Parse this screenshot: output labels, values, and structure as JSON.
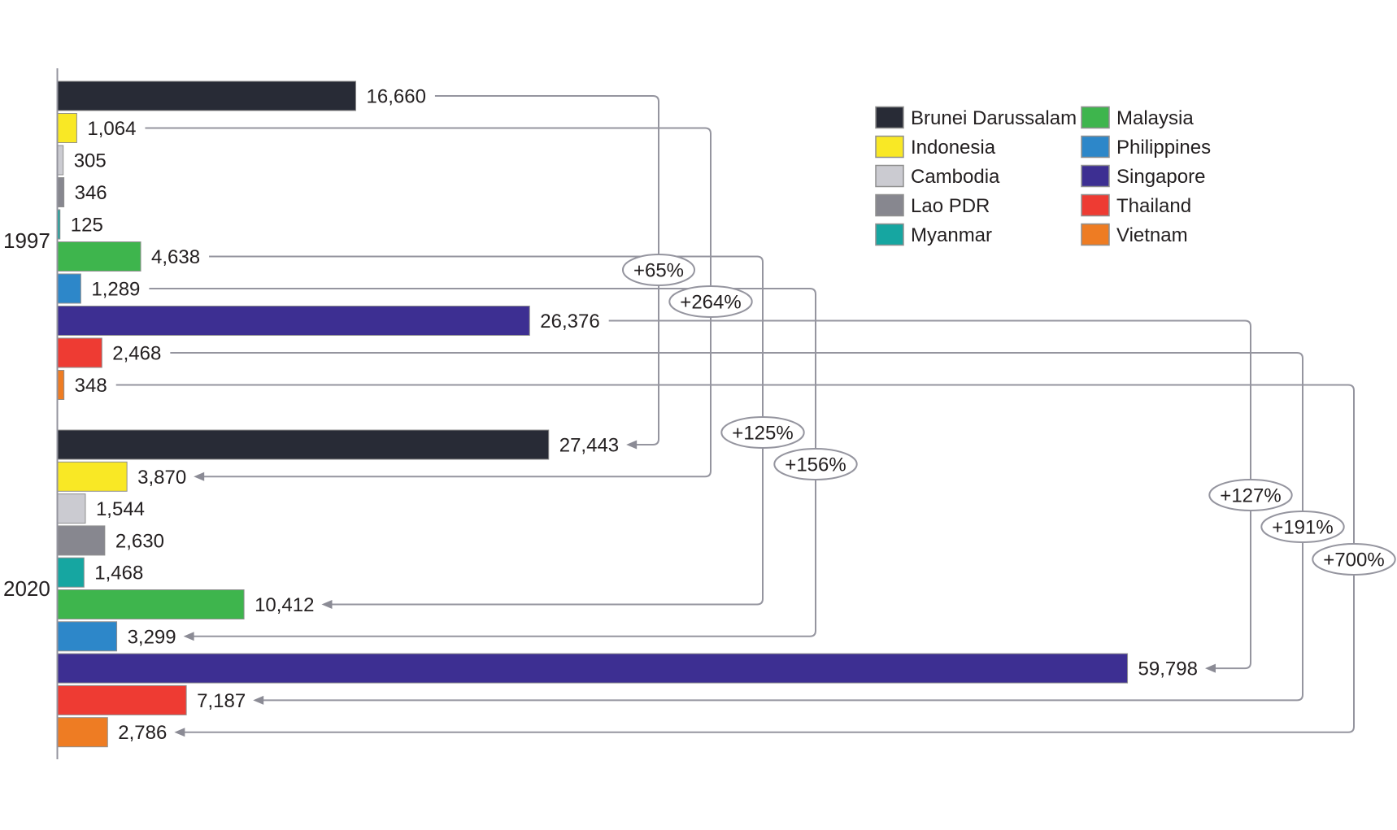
{
  "chart_data": {
    "type": "bar",
    "orientation": "horizontal",
    "groups": [
      "1997",
      "2020"
    ],
    "categories": [
      "Brunei Darussalam",
      "Indonesia",
      "Cambodia",
      "Lao PDR",
      "Myanmar",
      "Malaysia",
      "Philippines",
      "Singapore",
      "Thailand",
      "Vietnam"
    ],
    "series": [
      {
        "name": "1997",
        "values": [
          16660,
          1064,
          305,
          346,
          125,
          4638,
          1289,
          26376,
          2468,
          348
        ],
        "labels": [
          "16,660",
          "1,064",
          "305",
          "346",
          "125",
          "4,638",
          "1,289",
          "26,376",
          "2,468",
          "348"
        ]
      },
      {
        "name": "2020",
        "values": [
          27443,
          3870,
          1544,
          2630,
          1468,
          10412,
          3299,
          59798,
          7187,
          2786
        ],
        "labels": [
          "27,443",
          "3,870",
          "1,544",
          "2,630",
          "1,468",
          "10,412",
          "3,299",
          "59,798",
          "7,187",
          "2,786"
        ]
      }
    ],
    "annotations": [
      {
        "category": "Brunei Darussalam",
        "label": "+65%"
      },
      {
        "category": "Indonesia",
        "label": "+264%"
      },
      {
        "category": "Malaysia",
        "label": "+125%"
      },
      {
        "category": "Philippines",
        "label": "+156%"
      },
      {
        "category": "Singapore",
        "label": "+127%"
      },
      {
        "category": "Thailand",
        "label": "+191%"
      },
      {
        "category": "Vietnam",
        "label": "+700%"
      }
    ],
    "colors": {
      "Brunei Darussalam": "#282b36",
      "Indonesia": "#f9e825",
      "Cambodia": "#cbcbd1",
      "Lao PDR": "#87878f",
      "Myanmar": "#16a6a1",
      "Malaysia": "#3eb54d",
      "Philippines": "#2d87c9",
      "Singapore": "#3d2f92",
      "Thailand": "#ee3b33",
      "Vietnam": "#ee7c23"
    },
    "legend": {
      "position": "top-right",
      "columns": [
        [
          "Brunei Darussalam",
          "Indonesia",
          "Cambodia",
          "Lao PDR",
          "Myanmar"
        ],
        [
          "Malaysia",
          "Philippines",
          "Singapore",
          "Thailand",
          "Vietnam"
        ]
      ]
    },
    "style": {
      "connector_color": "#95959f",
      "arrow_color": "#8b8b95",
      "text_color": "#231f20",
      "bar_outline": "#8f8f8f",
      "background": "#ffffff"
    },
    "axis": {
      "grid": false,
      "x_min": 0,
      "x_max": 62000,
      "ticks_visible": false
    }
  }
}
